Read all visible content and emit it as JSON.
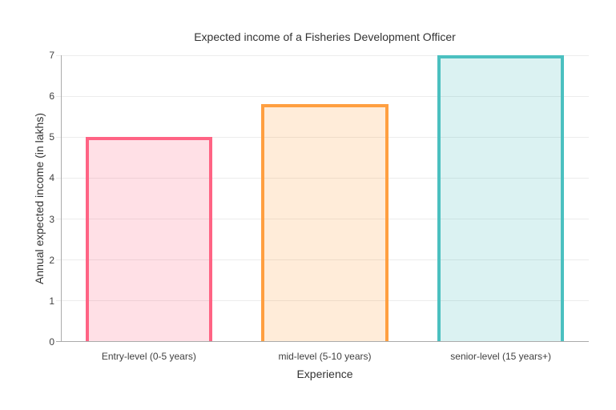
{
  "chart_data": {
    "type": "bar",
    "title": "Expected income of a Fisheries Development Officer",
    "xlabel": "Experience",
    "ylabel": "Annual expected income (in lakhs)",
    "categories": [
      "Entry-level (0-5 years)",
      "mid-level (5-10 years)",
      "senior-level (15 years+)"
    ],
    "values": [
      5,
      5.8,
      7
    ],
    "ylim": [
      0,
      7
    ],
    "yticks": [
      0,
      1,
      2,
      3,
      4,
      5,
      6,
      7
    ],
    "grid": "horizontal-only",
    "legend_position": "none",
    "bar_style": {
      "border_width_px": 4,
      "border_skipped": "bottom",
      "colors": [
        {
          "name": "pink",
          "border": "#FF6384",
          "fill": "rgba(255,99,132,0.2)"
        },
        {
          "name": "orange",
          "border": "#FF9F40",
          "fill": "rgba(255,159,64,0.2)"
        },
        {
          "name": "teal",
          "border": "#4BC0C0",
          "fill": "rgba(75,192,192,0.2)"
        }
      ]
    }
  },
  "style_colors": {
    "gridline": "#ececec",
    "axis_line": "#ababab",
    "title_text": "#333333",
    "axis_title_text": "#333333",
    "tick_text": "#404040",
    "background": "#ffffff"
  }
}
